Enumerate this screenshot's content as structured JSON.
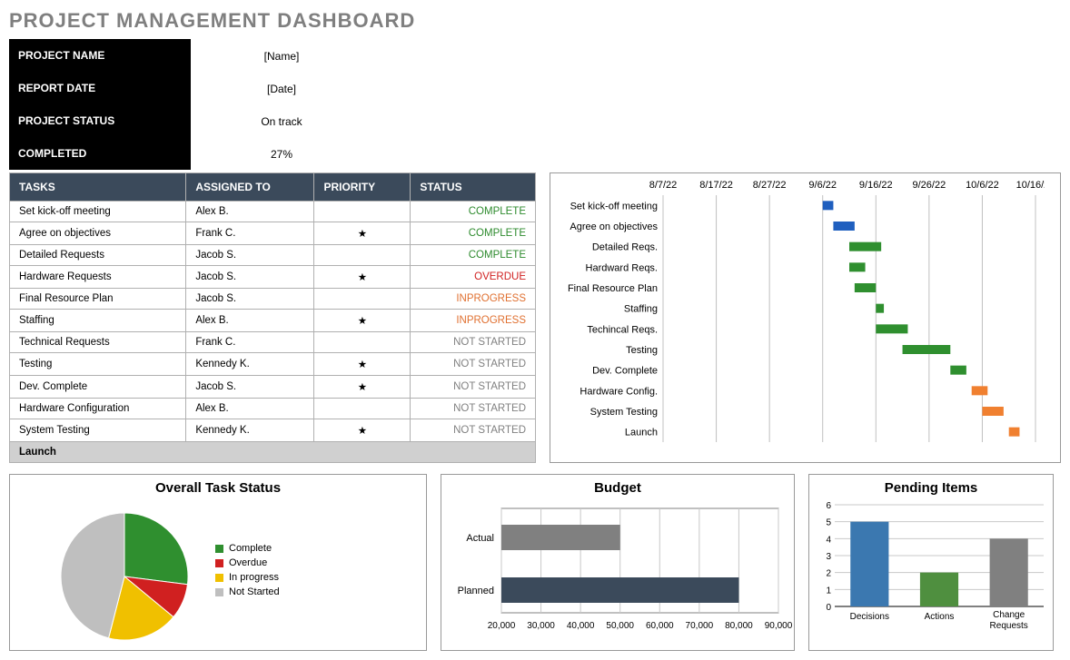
{
  "title": "PROJECT MANAGEMENT DASHBOARD",
  "info": {
    "rows": [
      {
        "label": "PROJECT NAME",
        "value": "[Name]"
      },
      {
        "label": "REPORT DATE",
        "value": "[Date]"
      },
      {
        "label": "PROJECT STATUS",
        "value": "On track"
      },
      {
        "label": "COMPLETED",
        "value": "27%"
      }
    ]
  },
  "task_table": {
    "headers": [
      "TASKS",
      "ASSIGNED TO",
      "PRIORITY",
      "STATUS"
    ],
    "rows": [
      {
        "task": "Set kick-off meeting",
        "assigned": "Alex B.",
        "priority": "",
        "status": "COMPLETE",
        "status_class": "s-complete"
      },
      {
        "task": "Agree on objectives",
        "assigned": "Frank C.",
        "priority": "★",
        "status": "COMPLETE",
        "status_class": "s-complete"
      },
      {
        "task": "Detailed Requests",
        "assigned": "Jacob S.",
        "priority": "",
        "status": "COMPLETE",
        "status_class": "s-complete"
      },
      {
        "task": "Hardware Requests",
        "assigned": "Jacob S.",
        "priority": "★",
        "status": "OVERDUE",
        "status_class": "s-overdue"
      },
      {
        "task": "Final Resource Plan",
        "assigned": "Jacob S.",
        "priority": "",
        "status": "INPROGRESS",
        "status_class": "s-inprogress"
      },
      {
        "task": "Staffing",
        "assigned": "Alex B.",
        "priority": "★",
        "status": "INPROGRESS",
        "status_class": "s-inprogress"
      },
      {
        "task": "Technical Requests",
        "assigned": "Frank C.",
        "priority": "",
        "status": "NOT STARTED",
        "status_class": "s-notstarted"
      },
      {
        "task": "Testing",
        "assigned": "Kennedy K.",
        "priority": "★",
        "status": "NOT STARTED",
        "status_class": "s-notstarted"
      },
      {
        "task": "Dev. Complete",
        "assigned": "Jacob S.",
        "priority": "★",
        "status": "NOT STARTED",
        "status_class": "s-notstarted"
      },
      {
        "task": "Hardware Configuration",
        "assigned": "Alex B.",
        "priority": "",
        "status": "NOT STARTED",
        "status_class": "s-notstarted"
      },
      {
        "task": "System Testing",
        "assigned": "Kennedy K.",
        "priority": "★",
        "status": "NOT STARTED",
        "status_class": "s-notstarted"
      }
    ],
    "launch_label": "Launch"
  },
  "gantt": {
    "x_dates": [
      "8/7/22",
      "8/17/22",
      "8/27/22",
      "9/6/22",
      "9/16/22",
      "9/26/22",
      "10/6/22",
      "10/16/22"
    ],
    "x_values": [
      0,
      10,
      20,
      30,
      40,
      50,
      60,
      70
    ],
    "x_range": [
      0,
      70
    ],
    "rows": [
      {
        "label": "Set kick-off meeting",
        "start": 30,
        "dur": 2,
        "color": "#1f5fbf"
      },
      {
        "label": "Agree on objectives",
        "start": 32,
        "dur": 4,
        "color": "#1f5fbf"
      },
      {
        "label": "Detailed Reqs.",
        "start": 35,
        "dur": 6,
        "color": "#2f8f2f"
      },
      {
        "label": "Hardward Reqs.",
        "start": 35,
        "dur": 3,
        "color": "#2f8f2f"
      },
      {
        "label": "Final Resource Plan",
        "start": 36,
        "dur": 4,
        "color": "#2f8f2f"
      },
      {
        "label": "Staffing",
        "start": 40,
        "dur": 1.5,
        "color": "#2f8f2f"
      },
      {
        "label": "Techincal Reqs.",
        "start": 40,
        "dur": 6,
        "color": "#2f8f2f"
      },
      {
        "label": "Testing",
        "start": 45,
        "dur": 9,
        "color": "#2f8f2f"
      },
      {
        "label": "Dev. Complete",
        "start": 54,
        "dur": 3,
        "color": "#2f8f2f"
      },
      {
        "label": "Hardware Config.",
        "start": 58,
        "dur": 3,
        "color": "#f08030"
      },
      {
        "label": "System Testing",
        "start": 60,
        "dur": 4,
        "color": "#f08030"
      },
      {
        "label": "Launch",
        "start": 65,
        "dur": 2,
        "color": "#f08030"
      }
    ]
  },
  "pie": {
    "title": "Overall Task Status",
    "slices": [
      {
        "label": "Complete",
        "value": 27,
        "color": "#2f8f2f"
      },
      {
        "label": "Overdue",
        "value": 9,
        "color": "#d02020"
      },
      {
        "label": "In progress",
        "value": 18,
        "color": "#f0c000"
      },
      {
        "label": "Not Started",
        "value": 46,
        "color": "#bfbfbf"
      }
    ]
  },
  "budget": {
    "title": "Budget",
    "x_ticks": [
      20000,
      30000,
      40000,
      50000,
      60000,
      70000,
      80000,
      90000
    ],
    "x_tick_labels": [
      "20,000",
      "30,000",
      "40,000",
      "50,000",
      "60,000",
      "70,000",
      "80,000",
      "90,000"
    ],
    "bars": [
      {
        "label": "Actual",
        "value": 50000,
        "color": "#808080"
      },
      {
        "label": "Planned",
        "value": 80000,
        "color": "#3b4a5b"
      }
    ]
  },
  "pending": {
    "title": "Pending Items",
    "y_max": 6,
    "y_ticks": [
      0,
      1,
      2,
      3,
      4,
      5,
      6
    ],
    "bars": [
      {
        "label": "Decisions",
        "value": 5,
        "color": "#3b78b0"
      },
      {
        "label": "Actions",
        "value": 2,
        "color": "#4f8f3f"
      },
      {
        "label": "Change Requests",
        "value": 4,
        "color": "#808080"
      }
    ]
  }
}
